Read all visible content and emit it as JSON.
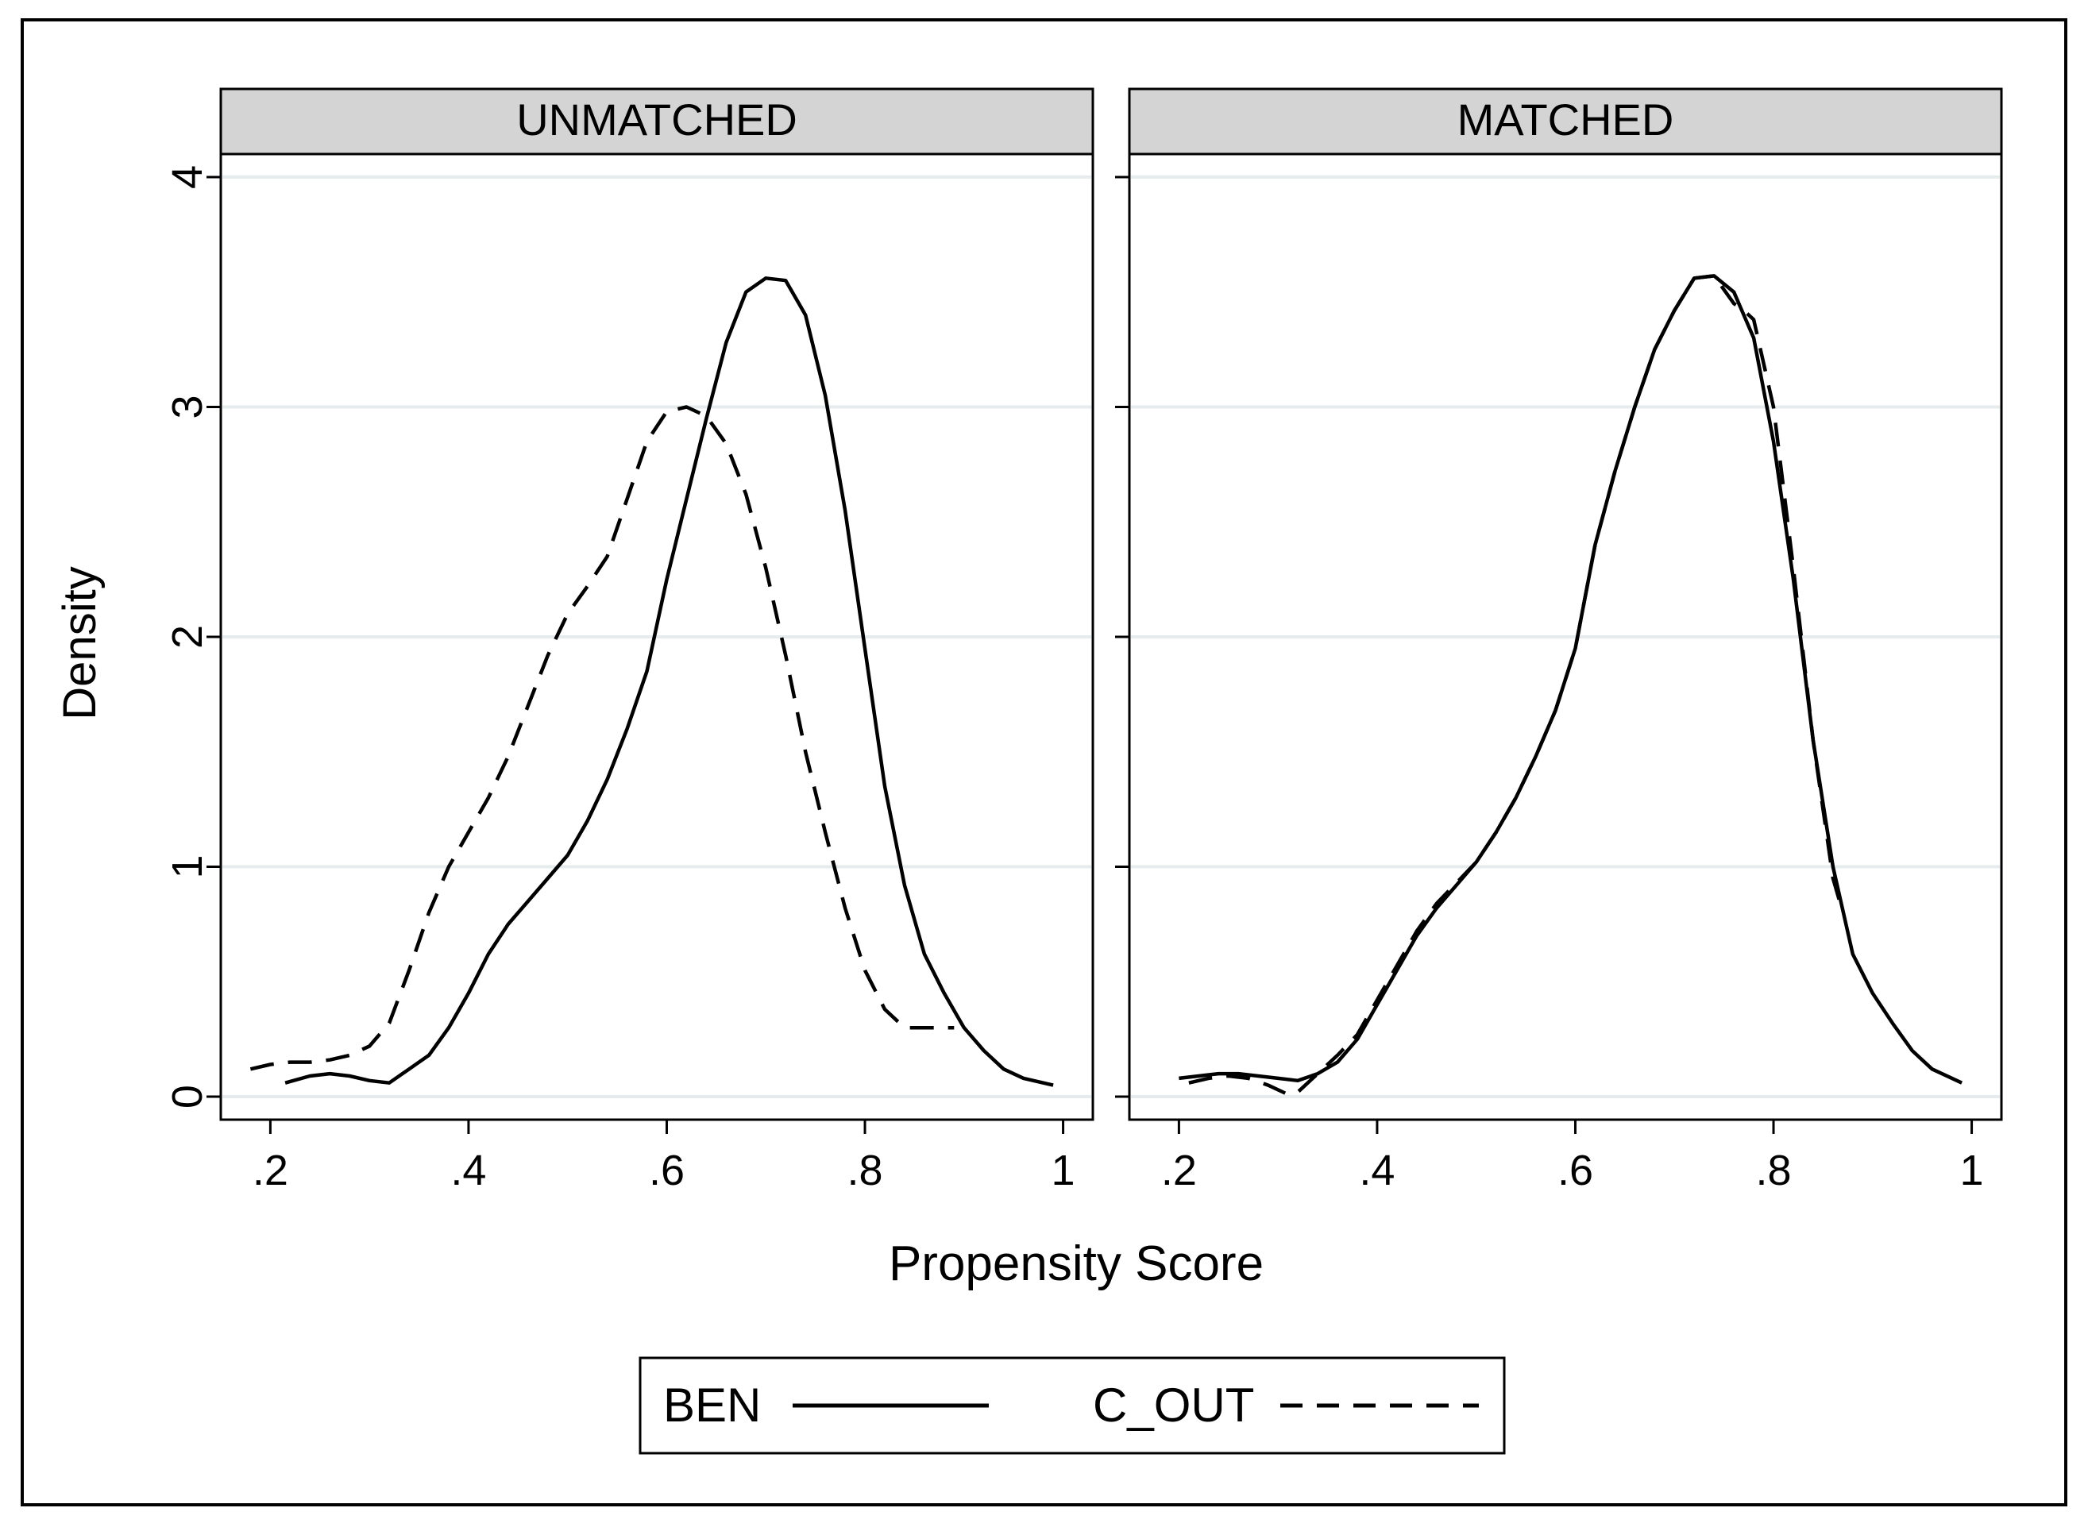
{
  "chart_data": {
    "type": "line",
    "xlabel": "Propensity Score",
    "ylabel": "Density",
    "xlim": [
      0.15,
      1.03
    ],
    "ylim": [
      -0.1,
      4.1
    ],
    "x_ticks": [
      0.2,
      0.4,
      0.6,
      0.8,
      1.0
    ],
    "x_tick_labels": [
      ".2",
      ".4",
      ".6",
      ".8",
      "1"
    ],
    "y_ticks": [
      0,
      1,
      2,
      3,
      4
    ],
    "y_tick_labels": [
      "0",
      "1",
      "2",
      "3",
      "4"
    ],
    "grid": true,
    "legend": {
      "position": "bottom-center",
      "entries": [
        {
          "label": "BEN",
          "style": "solid"
        },
        {
          "label": "C_OUT",
          "style": "dashed"
        }
      ]
    },
    "panels": [
      {
        "title": "UNMATCHED",
        "series": [
          {
            "name": "BEN",
            "style": "solid",
            "x": [
              0.215,
              0.24,
              0.26,
              0.28,
              0.3,
              0.32,
              0.34,
              0.36,
              0.38,
              0.4,
              0.42,
              0.44,
              0.46,
              0.48,
              0.5,
              0.52,
              0.54,
              0.56,
              0.58,
              0.6,
              0.62,
              0.64,
              0.66,
              0.68,
              0.7,
              0.72,
              0.74,
              0.76,
              0.78,
              0.8,
              0.82,
              0.84,
              0.86,
              0.88,
              0.9,
              0.92,
              0.94,
              0.96,
              0.99
            ],
            "y": [
              0.06,
              0.09,
              0.1,
              0.09,
              0.07,
              0.06,
              0.12,
              0.18,
              0.3,
              0.45,
              0.62,
              0.75,
              0.85,
              0.95,
              1.05,
              1.2,
              1.38,
              1.6,
              1.85,
              2.25,
              2.6,
              2.95,
              3.28,
              3.5,
              3.56,
              3.55,
              3.4,
              3.05,
              2.55,
              1.95,
              1.35,
              0.92,
              0.62,
              0.45,
              0.3,
              0.2,
              0.12,
              0.08,
              0.05
            ]
          },
          {
            "name": "C_OUT",
            "style": "dashed",
            "x": [
              0.18,
              0.2,
              0.22,
              0.24,
              0.26,
              0.28,
              0.3,
              0.32,
              0.34,
              0.36,
              0.38,
              0.4,
              0.42,
              0.44,
              0.46,
              0.48,
              0.5,
              0.52,
              0.54,
              0.56,
              0.58,
              0.6,
              0.62,
              0.64,
              0.66,
              0.68,
              0.7,
              0.72,
              0.74,
              0.76,
              0.78,
              0.8,
              0.82,
              0.84,
              0.86,
              0.89
            ],
            "y": [
              0.12,
              0.14,
              0.15,
              0.15,
              0.16,
              0.18,
              0.22,
              0.32,
              0.55,
              0.8,
              1.0,
              1.15,
              1.3,
              1.48,
              1.7,
              1.92,
              2.1,
              2.22,
              2.35,
              2.6,
              2.85,
              2.98,
              3.0,
              2.96,
              2.84,
              2.62,
              2.3,
              1.92,
              1.5,
              1.15,
              0.82,
              0.55,
              0.38,
              0.3,
              0.3,
              0.3
            ]
          }
        ]
      },
      {
        "title": "MATCHED",
        "series": [
          {
            "name": "BEN",
            "style": "solid",
            "x": [
              0.2,
              0.22,
              0.24,
              0.26,
              0.28,
              0.3,
              0.32,
              0.34,
              0.36,
              0.38,
              0.4,
              0.42,
              0.44,
              0.46,
              0.48,
              0.5,
              0.52,
              0.54,
              0.56,
              0.58,
              0.6,
              0.62,
              0.64,
              0.66,
              0.68,
              0.7,
              0.72,
              0.74,
              0.76,
              0.78,
              0.8,
              0.82,
              0.84,
              0.86,
              0.88,
              0.9,
              0.92,
              0.94,
              0.96,
              0.99
            ],
            "y": [
              0.08,
              0.09,
              0.1,
              0.1,
              0.09,
              0.08,
              0.07,
              0.1,
              0.15,
              0.25,
              0.4,
              0.55,
              0.7,
              0.82,
              0.92,
              1.02,
              1.15,
              1.3,
              1.48,
              1.68,
              1.95,
              2.4,
              2.72,
              3.0,
              3.25,
              3.42,
              3.56,
              3.57,
              3.5,
              3.3,
              2.85,
              2.25,
              1.55,
              1.0,
              0.62,
              0.45,
              0.32,
              0.2,
              0.12,
              0.06
            ]
          },
          {
            "name": "C_OUT",
            "style": "dashed",
            "x": [
              0.21,
              0.23,
              0.25,
              0.27,
              0.29,
              0.31,
              0.32,
              0.34,
              0.36,
              0.38,
              0.4,
              0.42,
              0.44,
              0.46,
              0.48,
              0.5,
              0.52,
              0.54,
              0.56,
              0.58,
              0.6,
              0.62,
              0.64,
              0.66,
              0.68,
              0.7,
              0.72,
              0.74,
              0.76,
              0.77,
              0.78,
              0.8,
              0.82,
              0.84,
              0.86,
              0.87
            ],
            "y": [
              0.06,
              0.08,
              0.09,
              0.08,
              0.05,
              0.01,
              0.02,
              0.1,
              0.18,
              0.27,
              0.42,
              0.57,
              0.72,
              0.84,
              0.93,
              1.02,
              1.15,
              1.3,
              1.48,
              1.68,
              1.95,
              2.4,
              2.72,
              3.0,
              3.25,
              3.42,
              3.56,
              3.57,
              3.45,
              3.42,
              3.38,
              3.0,
              2.3,
              1.55,
              0.95,
              0.8
            ]
          }
        ]
      }
    ]
  }
}
